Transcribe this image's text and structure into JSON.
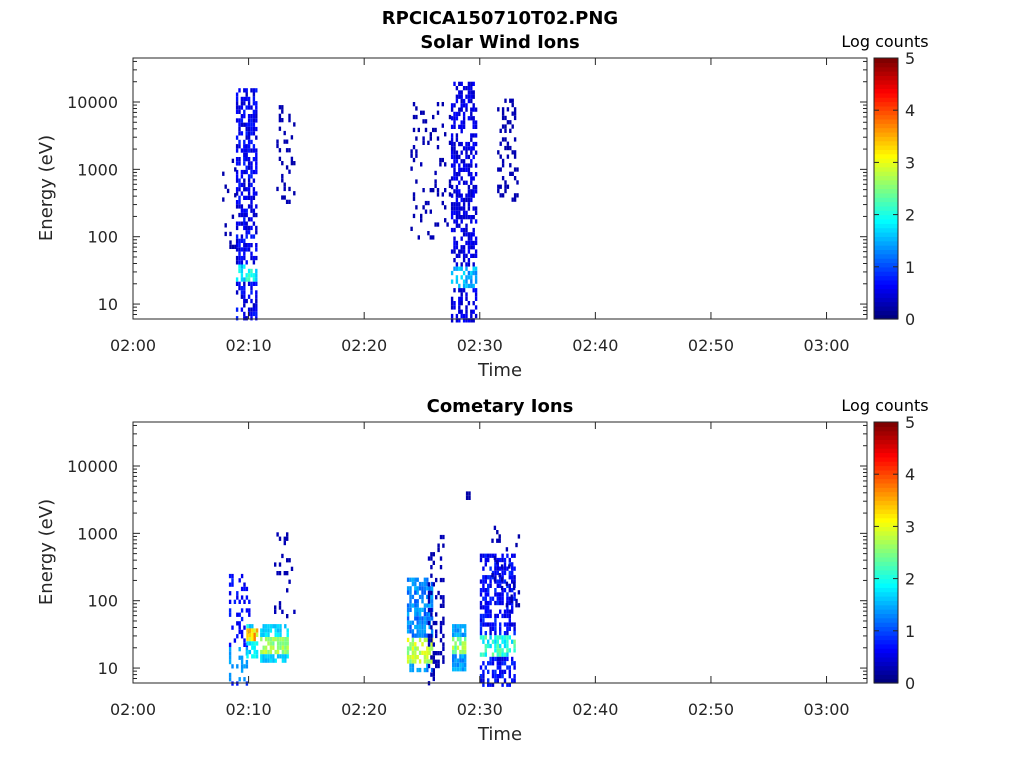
{
  "figure_title": "RPCICA150710T02.PNG",
  "colors": {
    "colormap": "jet",
    "axes": "#262626",
    "background": "#ffffff"
  },
  "chart_data": [
    {
      "type": "heatmap",
      "title": "Solar Wind Ions",
      "xlabel": "Time",
      "ylabel": "Energy (eV)",
      "x_tick_labels": [
        "02:00",
        "02:10",
        "02:20",
        "02:30",
        "02:40",
        "02:50",
        "03:00"
      ],
      "x_ticks_min": [
        0,
        10,
        20,
        30,
        40,
        50,
        60
      ],
      "xlim_min": [
        0,
        63.5
      ],
      "y_tick_labels": [
        "10",
        "100",
        "1000",
        "10000"
      ],
      "y_ticks": [
        10,
        100,
        1000,
        10000
      ],
      "y_scale": "log",
      "ylim": [
        6,
        45000
      ],
      "colorbar": {
        "label": "Log counts",
        "ticks": [
          0,
          1,
          2,
          3,
          4,
          5
        ],
        "range": [
          0,
          5
        ]
      },
      "bursts": [
        {
          "t_start": 8.9,
          "t_end": 10.6,
          "e_min": 6,
          "e_max": 16000,
          "density": 0.6,
          "level_low": 0.3,
          "level_mid": 1.5,
          "level_hot": 2.2,
          "hot_e": [
            22,
            40
          ]
        },
        {
          "t_start": 12.4,
          "t_end": 14.0,
          "e_min": 350,
          "e_max": 9000,
          "density": 0.22,
          "level_low": 0.2,
          "level_mid": 0.4,
          "level_hot": 0.4,
          "hot_e": [
            0,
            0
          ]
        },
        {
          "t_start": 7.5,
          "t_end": 8.9,
          "e_min": 40,
          "e_max": 3000,
          "density": 0.07,
          "level_low": 0.2,
          "level_mid": 0.3,
          "level_hot": 0.3,
          "hot_e": [
            0,
            0
          ]
        },
        {
          "t_start": 24.0,
          "t_end": 27.5,
          "e_min": 100,
          "e_max": 10000,
          "density": 0.13,
          "level_low": 0.2,
          "level_mid": 0.4,
          "level_hot": 0.4,
          "hot_e": [
            0,
            0
          ]
        },
        {
          "t_start": 27.5,
          "t_end": 29.6,
          "e_min": 6,
          "e_max": 20000,
          "density": 0.55,
          "level_low": 0.3,
          "level_mid": 1.2,
          "level_hot": 1.8,
          "hot_e": [
            18,
            35
          ]
        },
        {
          "t_start": 31.5,
          "t_end": 33.2,
          "e_min": 350,
          "e_max": 13000,
          "density": 0.25,
          "level_low": 0.2,
          "level_mid": 0.4,
          "level_hot": 0.4,
          "hot_e": [
            0,
            0
          ]
        }
      ]
    },
    {
      "type": "heatmap",
      "title": "Cometary Ions",
      "xlabel": "Time",
      "ylabel": "Energy (eV)",
      "x_tick_labels": [
        "02:00",
        "02:10",
        "02:20",
        "02:30",
        "02:40",
        "02:50",
        "03:00"
      ],
      "x_ticks_min": [
        0,
        10,
        20,
        30,
        40,
        50,
        60
      ],
      "xlim_min": [
        0,
        63.5
      ],
      "y_tick_labels": [
        "10",
        "100",
        "1000",
        "10000"
      ],
      "y_ticks": [
        10,
        100,
        1000,
        10000
      ],
      "y_scale": "log",
      "ylim": [
        6,
        45000
      ],
      "colorbar": {
        "label": "Log counts",
        "ticks": [
          0,
          1,
          2,
          3,
          4,
          5
        ],
        "range": [
          0,
          5
        ]
      },
      "bursts": [
        {
          "t_start": 8.3,
          "t_end": 10.0,
          "e_min": 6,
          "e_max": 250,
          "density": 0.25,
          "level_low": 0.5,
          "level_mid": 1.3,
          "level_hot": 1.5,
          "hot_e": [
            6,
            20
          ]
        },
        {
          "t_start": 9.8,
          "t_end": 10.8,
          "e_min": 14,
          "e_max": 45,
          "density": 0.7,
          "level_low": 1.5,
          "level_mid": 2.8,
          "level_hot": 3.8,
          "hot_e": [
            25,
            40
          ]
        },
        {
          "t_start": 11.0,
          "t_end": 13.3,
          "e_min": 12,
          "e_max": 45,
          "density": 0.75,
          "level_low": 1.5,
          "level_mid": 2.4,
          "level_hot": 2.9,
          "hot_e": [
            15,
            30
          ]
        },
        {
          "t_start": 12.2,
          "t_end": 14.0,
          "e_min": 60,
          "e_max": 1200,
          "density": 0.18,
          "level_low": 0.2,
          "level_mid": 0.4,
          "level_hot": 0.4,
          "hot_e": [
            0,
            0
          ]
        },
        {
          "t_start": 23.7,
          "t_end": 25.8,
          "e_min": 10,
          "e_max": 220,
          "density": 0.7,
          "level_low": 1.0,
          "level_mid": 2.4,
          "level_hot": 3.1,
          "hot_e": [
            12,
            30
          ]
        },
        {
          "t_start": 25.5,
          "t_end": 26.8,
          "e_min": 6,
          "e_max": 1100,
          "density": 0.3,
          "level_low": 0.2,
          "level_mid": 0.5,
          "level_hot": 0.5,
          "hot_e": [
            0,
            0
          ]
        },
        {
          "t_start": 27.6,
          "t_end": 28.8,
          "e_min": 10,
          "e_max": 45,
          "density": 0.75,
          "level_low": 1.2,
          "level_mid": 2.2,
          "level_hot": 2.9,
          "hot_e": [
            15,
            30
          ]
        },
        {
          "t_start": 28.8,
          "t_end": 29.2,
          "e_min": 3500,
          "e_max": 4200,
          "density": 1.0,
          "level_low": 0.2,
          "level_mid": 0.2,
          "level_hot": 0.2,
          "hot_e": [
            0,
            0
          ]
        },
        {
          "t_start": 30.0,
          "t_end": 33.0,
          "e_min": 6,
          "e_max": 500,
          "density": 0.6,
          "level_low": 0.4,
          "level_mid": 1.6,
          "level_hot": 2.5,
          "hot_e": [
            14,
            30
          ]
        },
        {
          "t_start": 31.0,
          "t_end": 33.3,
          "e_min": 80,
          "e_max": 1300,
          "density": 0.15,
          "level_low": 0.2,
          "level_mid": 0.4,
          "level_hot": 0.4,
          "hot_e": [
            0,
            0
          ]
        }
      ]
    }
  ]
}
